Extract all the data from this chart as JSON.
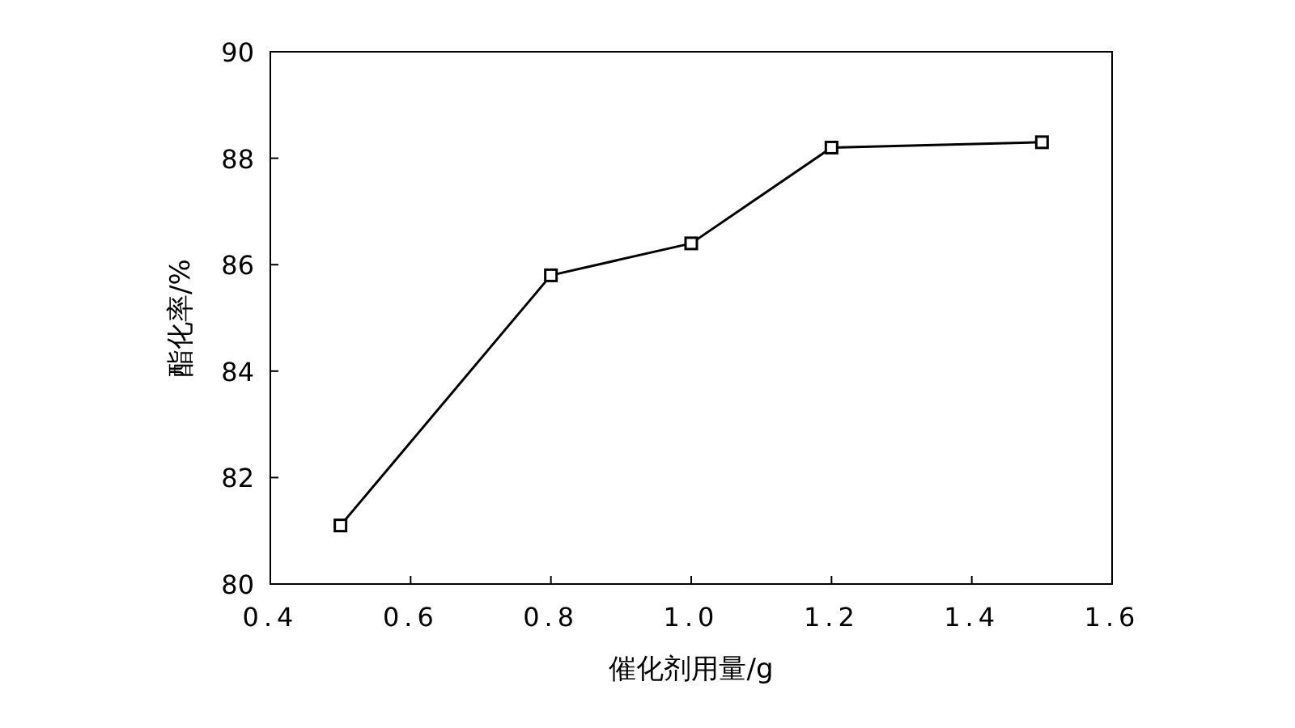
{
  "chart_data": {
    "type": "line",
    "xlabel": "催化剂用量/g",
    "ylabel": "酯化率/%",
    "x": [
      0.5,
      0.8,
      1.0,
      1.2,
      1.5
    ],
    "series": [
      {
        "color": "#000000",
        "values": [
          81.1,
          85.8,
          86.4,
          88.2,
          88.3
        ]
      }
    ],
    "xlim": [
      0.4,
      1.6
    ],
    "xticks": [
      {
        "value": 0.4,
        "label": "0.4"
      },
      {
        "value": 0.6,
        "label": "0.6"
      },
      {
        "value": 0.8,
        "label": "0.8"
      },
      {
        "value": 1.0,
        "label": "1.0"
      },
      {
        "value": 1.2,
        "label": "1.2"
      },
      {
        "value": 1.4,
        "label": "1.4"
      },
      {
        "value": 1.6,
        "label": "1.6"
      }
    ],
    "ylim": [
      80,
      90
    ],
    "yticks": [
      80,
      82,
      84,
      86,
      88,
      90
    ],
    "marker": "square",
    "line_style": "solid"
  }
}
